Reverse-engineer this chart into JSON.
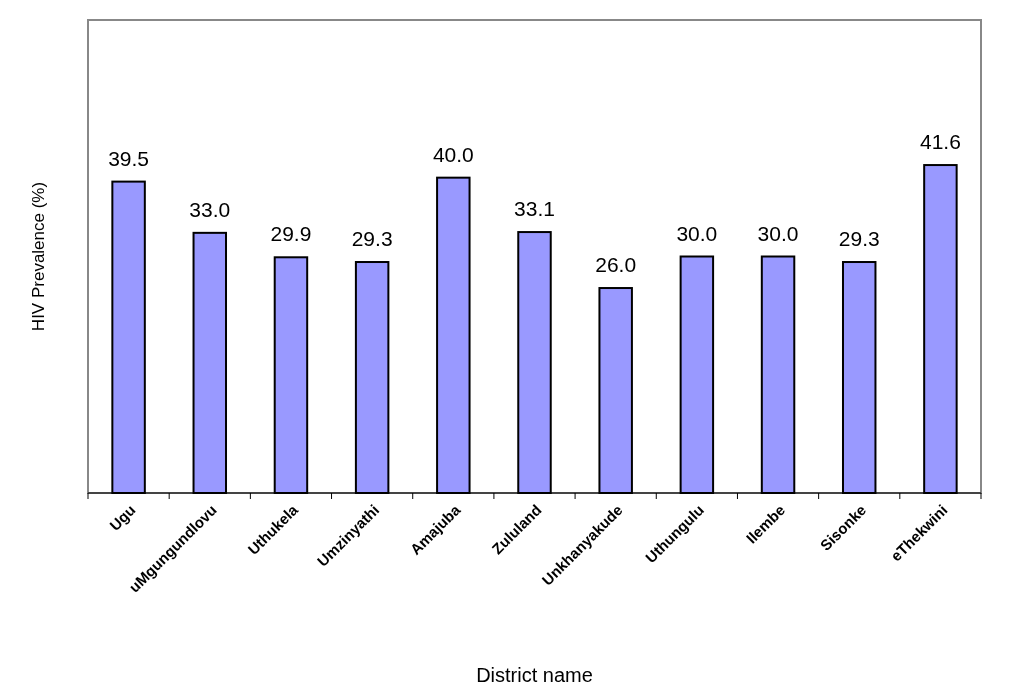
{
  "chart_data": {
    "type": "bar",
    "xlabel": "District name",
    "ylabel": "HIV Prevalence (%)",
    "categories": [
      "Ugu",
      "uMgungundlovu",
      "Uthukela",
      "Umzinyathi",
      "Amajuba",
      "Zululand",
      "Unkhanyakude",
      "Uthungulu",
      "Ilembe",
      "Sisonke",
      "eThekwini"
    ],
    "values": [
      39.5,
      33.0,
      29.9,
      29.3,
      40.0,
      33.1,
      26.0,
      30.0,
      30.0,
      29.3,
      41.6
    ],
    "value_labels": [
      "39.5",
      "33.0",
      "29.9",
      "29.3",
      "40.0",
      "33.1",
      "26.0",
      "30.0",
      "30.0",
      "29.3",
      "41.6"
    ],
    "color": "#9999ff",
    "ylim": [
      0,
      60
    ],
    "tick_labels": "x"
  }
}
